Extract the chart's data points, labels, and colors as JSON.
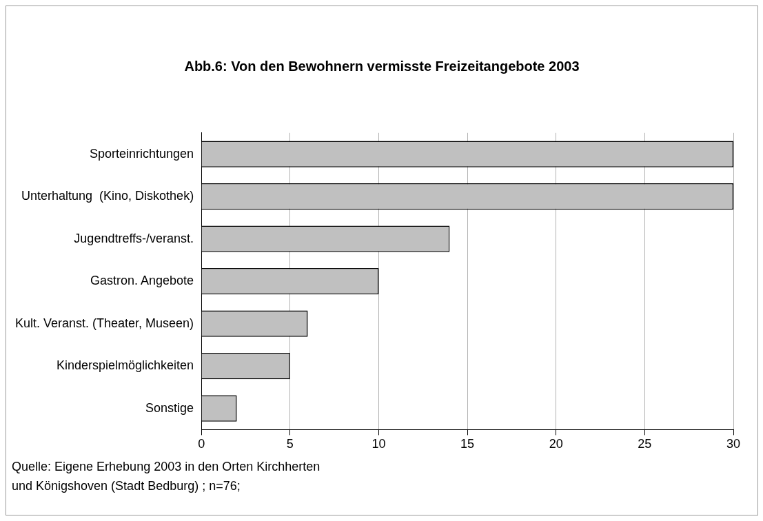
{
  "chart_data": {
    "type": "bar",
    "orientation": "horizontal",
    "title": "Abb.6: Von den Bewohnern vermisste Freizeitangebote 2003",
    "categories": [
      "Sporteinrichtungen",
      "Unterhaltung  (Kino, Diskothek)",
      "Jugendtreffs-/veranst.",
      "Gastron. Angebote",
      "Kult. Veranst. (Theater, Museen)",
      "Kinderspielmöglichkeiten",
      "Sonstige"
    ],
    "values": [
      30,
      30,
      14,
      10,
      6,
      5,
      2
    ],
    "color": "#c0c0c0",
    "xlim": [
      0,
      30
    ],
    "xticks": [
      0,
      5,
      10,
      15,
      20,
      25,
      30
    ],
    "grid": "x",
    "legend": false,
    "annotations": [
      "Quelle: Eigene Erhebung 2003 in den Orten Kirchherten",
      "und Königshoven (Stadt Bedburg) ; n=76;"
    ]
  }
}
